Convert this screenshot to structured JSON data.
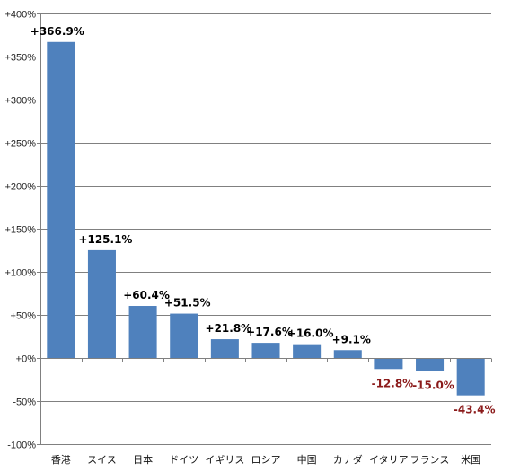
{
  "chart_data": {
    "type": "bar",
    "title": "",
    "xlabel": "",
    "ylabel": "",
    "ylim": [
      -100,
      400
    ],
    "yticks": [
      400,
      350,
      300,
      250,
      200,
      150,
      100,
      50,
      0,
      -50,
      -100
    ],
    "ytick_labels": [
      "+400%",
      "+350%",
      "+300%",
      "+250%",
      "+200%",
      "+150%",
      "+100%",
      "+50%",
      "+0%",
      "-50%",
      "-100%"
    ],
    "grid": true,
    "legend": "none",
    "categories": [
      "香港",
      "スイス",
      "日本",
      "ドイツ",
      "イギリス",
      "ロシア",
      "中国",
      "カナダ",
      "イタリア",
      "フランス",
      "米国"
    ],
    "values": [
      366.9,
      125.1,
      60.4,
      51.5,
      21.8,
      17.6,
      16.0,
      9.1,
      -12.8,
      -15.0,
      -43.4
    ],
    "data_labels": [
      "+366.9%",
      "+125.1%",
      "+60.4%",
      "+51.5%",
      "+21.8%",
      "+17.6%",
      "+16.0%",
      "+9.1%",
      "-12.8%",
      "-15.0%",
      "-43.4%"
    ],
    "colors": {
      "bar": "#4f81bd",
      "positive_label": "#000000",
      "negative_label": "#8b1a1a",
      "grid": "#808080",
      "axis": "#808080"
    }
  }
}
